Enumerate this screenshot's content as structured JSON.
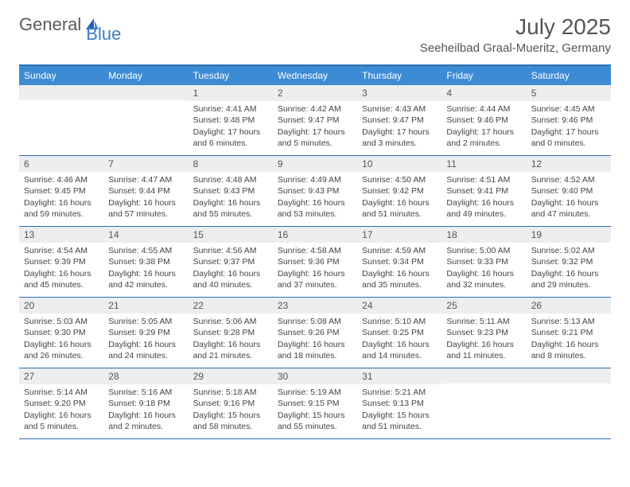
{
  "logo": {
    "word1": "General",
    "word2": "Blue"
  },
  "title": "July 2025",
  "location": "Seeheilbad Graal-Mueritz, Germany",
  "colors": {
    "header_bg": "#3d8bd4",
    "border": "#2f6fb3",
    "daynum_bg": "#eceef0",
    "text": "#444444",
    "logo_blue": "#3d7cc9"
  },
  "day_names": [
    "Sunday",
    "Monday",
    "Tuesday",
    "Wednesday",
    "Thursday",
    "Friday",
    "Saturday"
  ],
  "weeks": [
    [
      null,
      null,
      {
        "n": "1",
        "sr": "4:41 AM",
        "ss": "9:48 PM",
        "dl": "17 hours and 6 minutes."
      },
      {
        "n": "2",
        "sr": "4:42 AM",
        "ss": "9:47 PM",
        "dl": "17 hours and 5 minutes."
      },
      {
        "n": "3",
        "sr": "4:43 AM",
        "ss": "9:47 PM",
        "dl": "17 hours and 3 minutes."
      },
      {
        "n": "4",
        "sr": "4:44 AM",
        "ss": "9:46 PM",
        "dl": "17 hours and 2 minutes."
      },
      {
        "n": "5",
        "sr": "4:45 AM",
        "ss": "9:46 PM",
        "dl": "17 hours and 0 minutes."
      }
    ],
    [
      {
        "n": "6",
        "sr": "4:46 AM",
        "ss": "9:45 PM",
        "dl": "16 hours and 59 minutes."
      },
      {
        "n": "7",
        "sr": "4:47 AM",
        "ss": "9:44 PM",
        "dl": "16 hours and 57 minutes."
      },
      {
        "n": "8",
        "sr": "4:48 AM",
        "ss": "9:43 PM",
        "dl": "16 hours and 55 minutes."
      },
      {
        "n": "9",
        "sr": "4:49 AM",
        "ss": "9:43 PM",
        "dl": "16 hours and 53 minutes."
      },
      {
        "n": "10",
        "sr": "4:50 AM",
        "ss": "9:42 PM",
        "dl": "16 hours and 51 minutes."
      },
      {
        "n": "11",
        "sr": "4:51 AM",
        "ss": "9:41 PM",
        "dl": "16 hours and 49 minutes."
      },
      {
        "n": "12",
        "sr": "4:52 AM",
        "ss": "9:40 PM",
        "dl": "16 hours and 47 minutes."
      }
    ],
    [
      {
        "n": "13",
        "sr": "4:54 AM",
        "ss": "9:39 PM",
        "dl": "16 hours and 45 minutes."
      },
      {
        "n": "14",
        "sr": "4:55 AM",
        "ss": "9:38 PM",
        "dl": "16 hours and 42 minutes."
      },
      {
        "n": "15",
        "sr": "4:56 AM",
        "ss": "9:37 PM",
        "dl": "16 hours and 40 minutes."
      },
      {
        "n": "16",
        "sr": "4:58 AM",
        "ss": "9:36 PM",
        "dl": "16 hours and 37 minutes."
      },
      {
        "n": "17",
        "sr": "4:59 AM",
        "ss": "9:34 PM",
        "dl": "16 hours and 35 minutes."
      },
      {
        "n": "18",
        "sr": "5:00 AM",
        "ss": "9:33 PM",
        "dl": "16 hours and 32 minutes."
      },
      {
        "n": "19",
        "sr": "5:02 AM",
        "ss": "9:32 PM",
        "dl": "16 hours and 29 minutes."
      }
    ],
    [
      {
        "n": "20",
        "sr": "5:03 AM",
        "ss": "9:30 PM",
        "dl": "16 hours and 26 minutes."
      },
      {
        "n": "21",
        "sr": "5:05 AM",
        "ss": "9:29 PM",
        "dl": "16 hours and 24 minutes."
      },
      {
        "n": "22",
        "sr": "5:06 AM",
        "ss": "9:28 PM",
        "dl": "16 hours and 21 minutes."
      },
      {
        "n": "23",
        "sr": "5:08 AM",
        "ss": "9:26 PM",
        "dl": "16 hours and 18 minutes."
      },
      {
        "n": "24",
        "sr": "5:10 AM",
        "ss": "9:25 PM",
        "dl": "16 hours and 14 minutes."
      },
      {
        "n": "25",
        "sr": "5:11 AM",
        "ss": "9:23 PM",
        "dl": "16 hours and 11 minutes."
      },
      {
        "n": "26",
        "sr": "5:13 AM",
        "ss": "9:21 PM",
        "dl": "16 hours and 8 minutes."
      }
    ],
    [
      {
        "n": "27",
        "sr": "5:14 AM",
        "ss": "9:20 PM",
        "dl": "16 hours and 5 minutes."
      },
      {
        "n": "28",
        "sr": "5:16 AM",
        "ss": "9:18 PM",
        "dl": "16 hours and 2 minutes."
      },
      {
        "n": "29",
        "sr": "5:18 AM",
        "ss": "9:16 PM",
        "dl": "15 hours and 58 minutes."
      },
      {
        "n": "30",
        "sr": "5:19 AM",
        "ss": "9:15 PM",
        "dl": "15 hours and 55 minutes."
      },
      {
        "n": "31",
        "sr": "5:21 AM",
        "ss": "9:13 PM",
        "dl": "15 hours and 51 minutes."
      },
      null,
      null
    ]
  ],
  "labels": {
    "sunrise": "Sunrise:",
    "sunset": "Sunset:",
    "daylight": "Daylight:"
  }
}
